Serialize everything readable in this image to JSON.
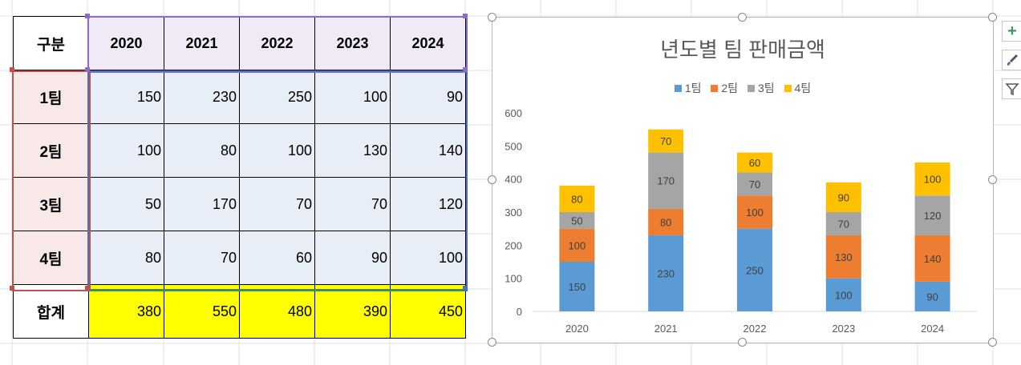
{
  "table": {
    "header_label": "구분",
    "years": [
      "2020",
      "2021",
      "2022",
      "2023",
      "2024"
    ],
    "rows": [
      {
        "label": "1팀",
        "values": [
          "150",
          "230",
          "250",
          "100",
          "90"
        ]
      },
      {
        "label": "2팀",
        "values": [
          "100",
          "80",
          "100",
          "130",
          "140"
        ]
      },
      {
        "label": "3팀",
        "values": [
          "50",
          "170",
          "70",
          "70",
          "120"
        ]
      },
      {
        "label": "4팀",
        "values": [
          "80",
          "70",
          "60",
          "90",
          "100"
        ]
      }
    ],
    "total": {
      "label": "합계",
      "values": [
        "380",
        "550",
        "480",
        "390",
        "450"
      ]
    }
  },
  "colors": {
    "team1": "#5b9bd5",
    "team2": "#ed7d31",
    "team3": "#a5a5a5",
    "team4": "#ffc000"
  },
  "side_buttons": {
    "add_icon": "plus-icon",
    "style_icon": "brush-icon",
    "filter_icon": "filter-icon"
  },
  "chart_data": {
    "type": "bar",
    "stacked": true,
    "title": "년도별 팀 판매금액",
    "categories": [
      "2020",
      "2021",
      "2022",
      "2023",
      "2024"
    ],
    "series": [
      {
        "name": "1팀",
        "values": [
          150,
          230,
          250,
          100,
          90
        ]
      },
      {
        "name": "2팀",
        "values": [
          100,
          80,
          100,
          130,
          140
        ]
      },
      {
        "name": "3팀",
        "values": [
          50,
          170,
          70,
          70,
          120
        ]
      },
      {
        "name": "4팀",
        "values": [
          80,
          70,
          60,
          90,
          100
        ]
      }
    ],
    "ylim": [
      0,
      600
    ],
    "yticks": [
      0,
      100,
      200,
      300,
      400,
      500,
      600
    ],
    "xlabel": "",
    "ylabel": "",
    "legend": "top",
    "grid": false
  }
}
